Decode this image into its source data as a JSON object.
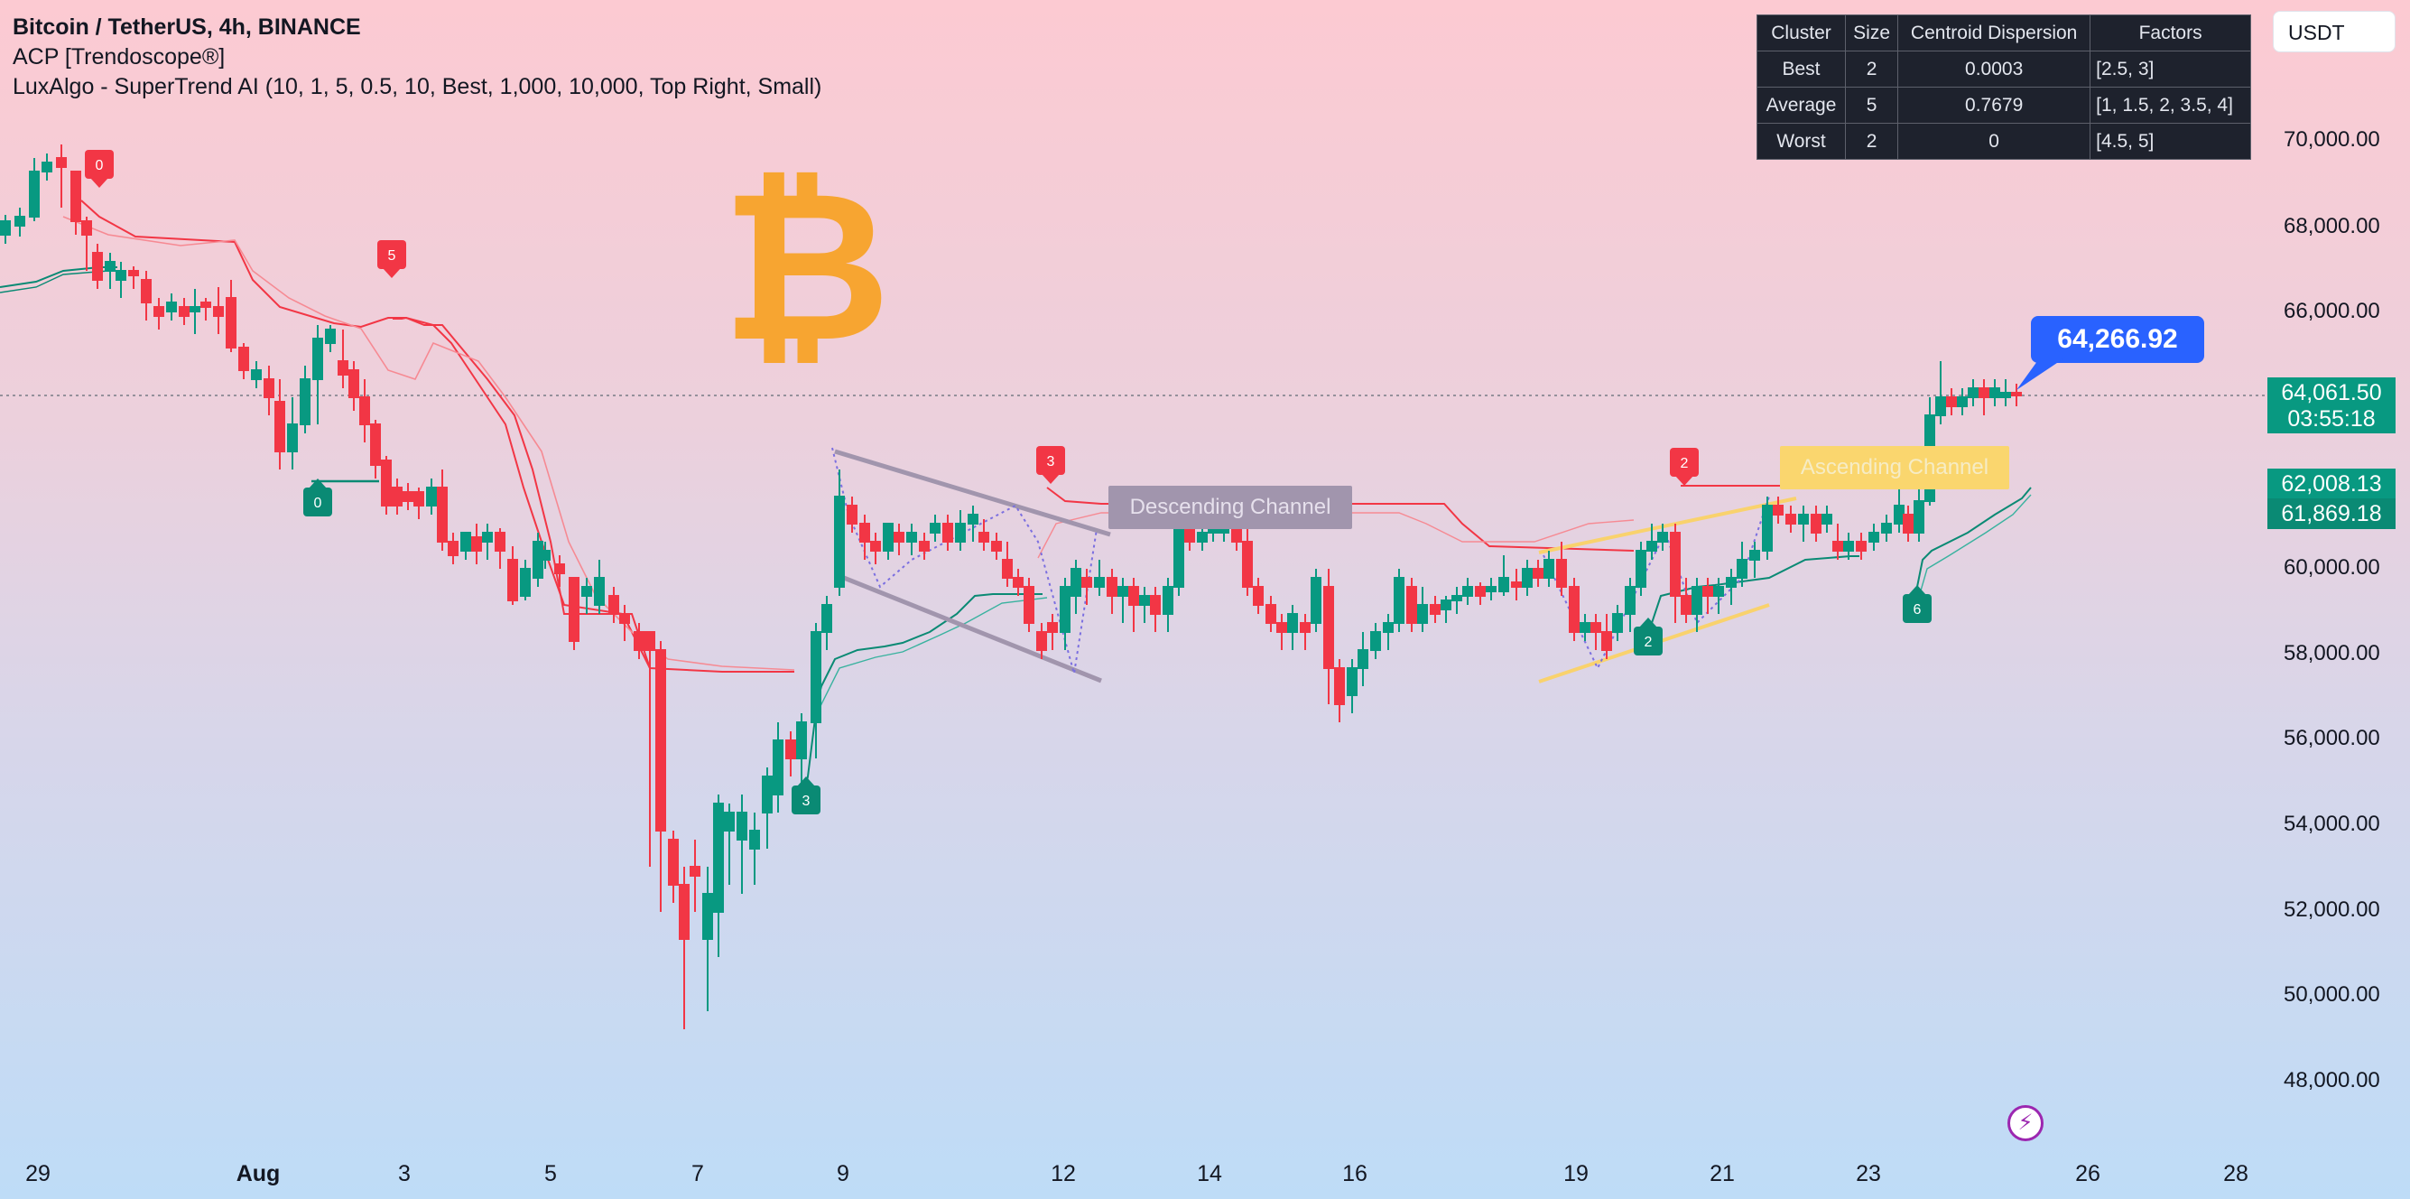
{
  "header": {
    "symbol": "Bitcoin / TetherUS, 4h, BINANCE",
    "indicator_1": "ACP [Trendoscope®]",
    "indicator_2": "LuxAlgo - SuperTrend AI (10, 1, 5, 0.5, 10, Best, 1,000, 10,000, Top Right, Small)"
  },
  "currency": "USDT",
  "stats_table": {
    "headers": [
      "Cluster",
      "Size",
      "Centroid Dispersion",
      "Factors"
    ],
    "rows": [
      [
        "Best",
        "2",
        "0.0003",
        "[2.5, 3]"
      ],
      [
        "Average",
        "5",
        "0.7679",
        "[1, 1.5, 2, 3.5, 4]"
      ],
      [
        "Worst",
        "2",
        "0",
        "[4.5, 5]"
      ]
    ]
  },
  "price_callout": "64,266.92",
  "axis_tags": {
    "last_price": "64,061.50",
    "countdown": "03:55:18",
    "level_1": "62,008.13",
    "level_2": "61,869.18"
  },
  "colors": {
    "bull": "#089981",
    "bear": "#f23645",
    "trail_bull": "#0a8a74",
    "trail_bear": "#f23645",
    "bitcoin": "#f7a531",
    "accent": "#2962ff"
  },
  "chart_data": {
    "type": "candlestick",
    "y_axis": {
      "ticks": [
        "48,000.00",
        "50,000.00",
        "52,000.00",
        "54,000.00",
        "56,000.00",
        "58,000.00",
        "60,000.00",
        "62,000.00",
        "64,000.00",
        "66,000.00",
        "68,000.00",
        "70,000.00"
      ]
    },
    "x_axis": {
      "ticks": [
        "29",
        "Aug",
        "3",
        "5",
        "7",
        "9",
        "12",
        "14",
        "16",
        "19",
        "21",
        "23",
        "26",
        "28"
      ]
    },
    "signals": [
      {
        "label": "0",
        "type": "bear",
        "date": "Jul 30"
      },
      {
        "label": "5",
        "type": "bear",
        "date": "Aug 2"
      },
      {
        "label": "0",
        "type": "bull",
        "date": "Aug 2"
      },
      {
        "label": "3",
        "type": "bull",
        "date": "Aug 8"
      },
      {
        "label": "3",
        "type": "bear",
        "date": "Aug 12"
      },
      {
        "label": "2",
        "type": "bear",
        "date": "Aug 21"
      },
      {
        "label": "2",
        "type": "bull",
        "date": "Aug 20"
      },
      {
        "label": "6",
        "type": "bull",
        "date": "Aug 24"
      }
    ],
    "patterns": [
      {
        "label": "Descending Channel"
      },
      {
        "label": "Ascending Channel"
      }
    ]
  }
}
